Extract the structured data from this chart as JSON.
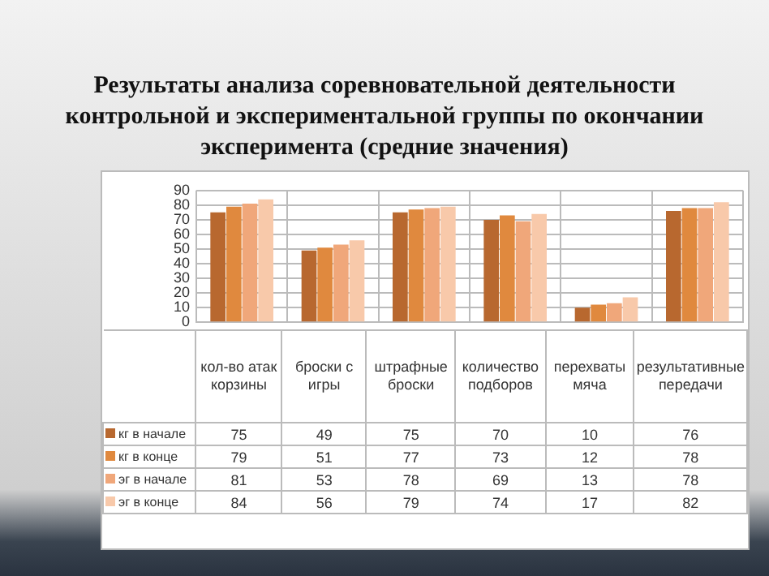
{
  "chart_data": {
    "type": "bar",
    "title": "Результаты анализа соревновательной деятельности контрольной и экспериментальной группы  по окончании эксперимента (средние значения)",
    "categories": [
      "кол-во атак корзины",
      "броски с игры",
      "штрафные броски",
      "количество подборов",
      "перехваты мяча",
      "результативные передачи"
    ],
    "series": [
      {
        "name": "кг в начале",
        "color": "#b8682f",
        "values": [
          75,
          49,
          75,
          70,
          10,
          76
        ]
      },
      {
        "name": "кг в конце",
        "color": "#e0893e",
        "values": [
          79,
          51,
          77,
          73,
          12,
          78
        ]
      },
      {
        "name": "эг в начале",
        "color": "#f0a77a",
        "values": [
          81,
          53,
          78,
          69,
          13,
          78
        ]
      },
      {
        "name": "эг в конце",
        "color": "#f8c9aa",
        "values": [
          84,
          56,
          79,
          74,
          17,
          82
        ]
      }
    ],
    "ylim": [
      0,
      90
    ],
    "yticks": [
      0,
      10,
      20,
      30,
      40,
      50,
      60,
      70,
      80,
      90
    ],
    "grid": true,
    "legend": "bottom",
    "data_labels": true
  }
}
